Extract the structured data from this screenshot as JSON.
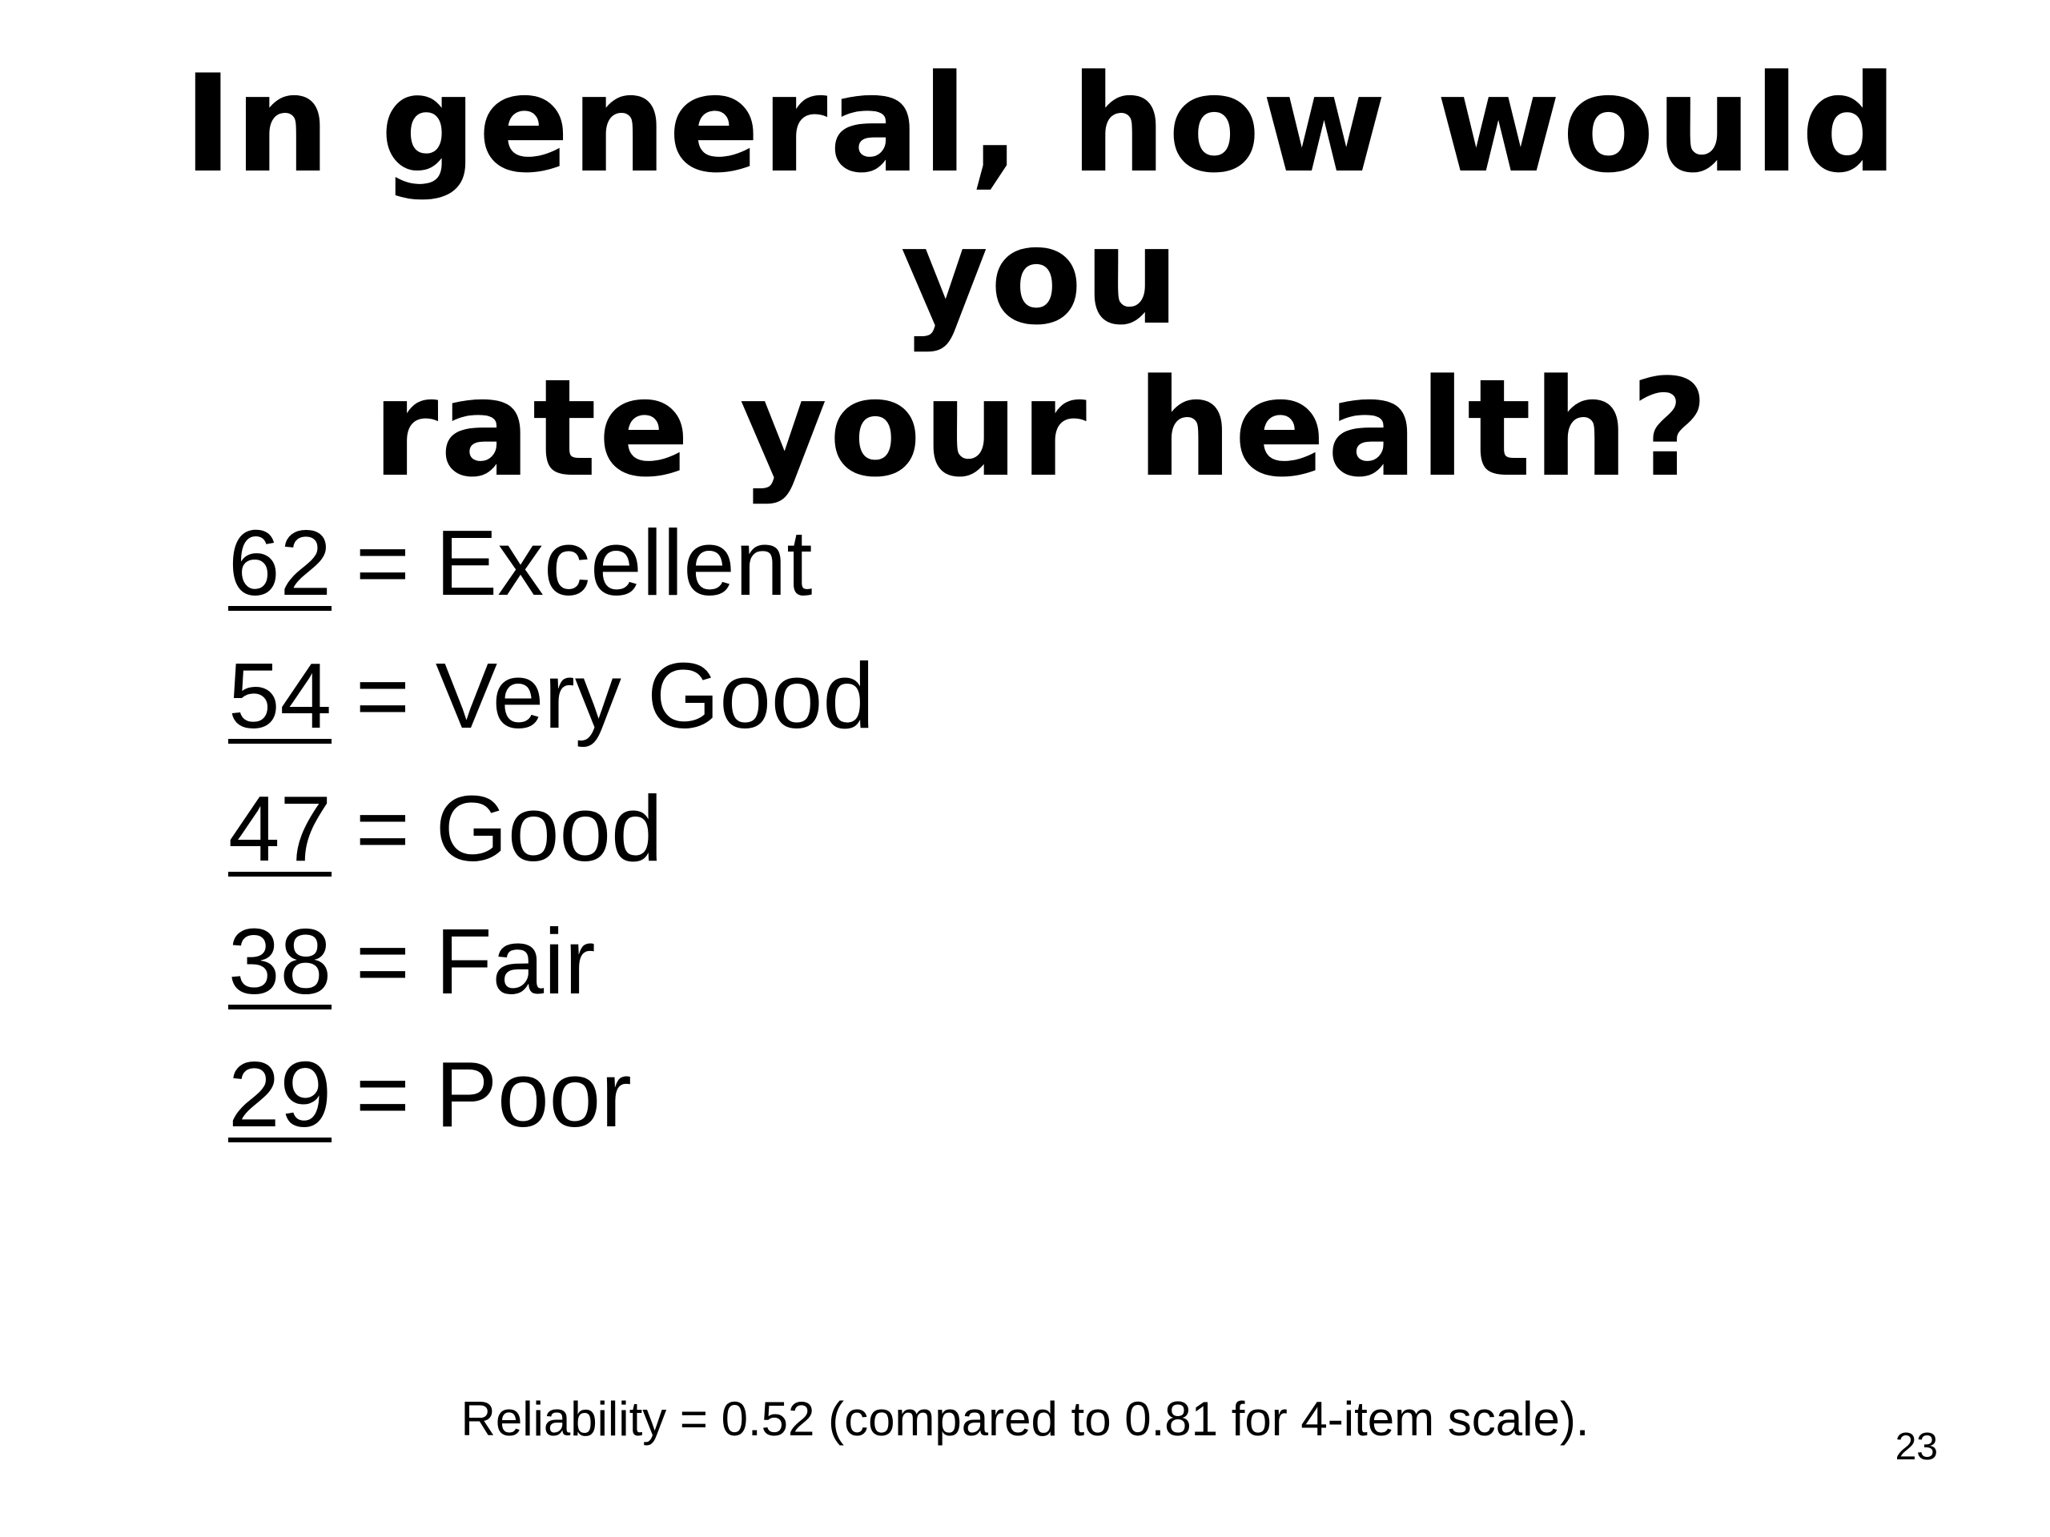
{
  "title": {
    "line1": "In general, how would you",
    "line2": "rate your health?"
  },
  "ratings": [
    {
      "score": "62",
      "equals": "=",
      "label": "Excellent"
    },
    {
      "score": "54",
      "equals": "=",
      "label": "Very Good"
    },
    {
      "score": "47",
      "equals": "=",
      "label": "Good"
    },
    {
      "score": "38",
      "equals": "=",
      "label": "Fair"
    },
    {
      "score": "29",
      "equals": "=",
      "label": "Poor"
    }
  ],
  "footnote": "Reliability = 0.52 (compared to 0.81 for 4-item scale).",
  "page_number": "23"
}
